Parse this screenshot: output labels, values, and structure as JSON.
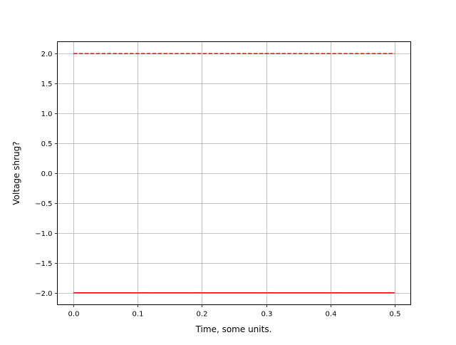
{
  "chart_data": {
    "type": "line",
    "title": "",
    "xlabel": "Time, some units.",
    "ylabel": "Voltage shrug?",
    "xlim": [
      -0.025,
      0.525
    ],
    "ylim": [
      -2.2,
      2.2
    ],
    "xticks": [
      0.0,
      0.1,
      0.2,
      0.3,
      0.4,
      0.5
    ],
    "xtick_labels": [
      "0.0",
      "0.1",
      "0.2",
      "0.3",
      "0.4",
      "0.5"
    ],
    "yticks": [
      -2.0,
      -1.5,
      -1.0,
      -0.5,
      0.0,
      0.5,
      1.0,
      1.5,
      2.0
    ],
    "ytick_labels": [
      "−2.0",
      "−1.5",
      "−1.0",
      "−0.5",
      "0.0",
      "0.5",
      "1.0",
      "1.5",
      "2.0"
    ],
    "grid": true,
    "series": [
      {
        "x": [
          0.0,
          0.5
        ],
        "y": [
          2.0,
          2.0
        ],
        "color": "#ff0000",
        "linestyle": "dashed"
      },
      {
        "x": [
          0.0,
          0.5
        ],
        "y": [
          -2.0,
          -2.0
        ],
        "color": "#ff0000",
        "linestyle": "solid"
      }
    ]
  }
}
